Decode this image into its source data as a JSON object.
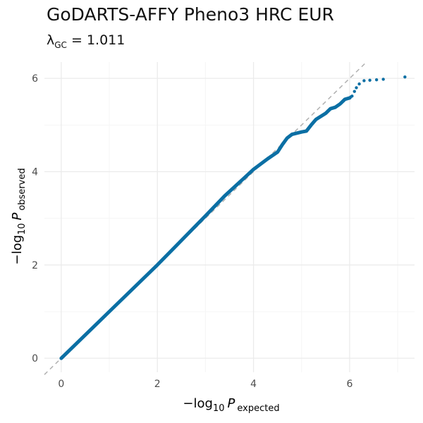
{
  "title": "GoDARTS-AFFY Pheno3 HRC EUR",
  "subtitle": {
    "lambda_symbol": "λ",
    "lambda_sub": "GC",
    "equals": " = ",
    "lambda_value": "1.011"
  },
  "colors": {
    "points": "#0b6fa4",
    "reference_line": "#b0b0b0",
    "grid_major": "#ebebeb",
    "grid_minor": "#f5f5f5"
  },
  "chart_data": {
    "type": "scatter",
    "xlabel": {
      "prefix": "−log",
      "base": "10",
      "p": "P",
      "sub": "expected"
    },
    "ylabel": {
      "prefix": "−log",
      "base": "10",
      "p": "P",
      "sub": "observed"
    },
    "xlim": [
      -0.35,
      7.35
    ],
    "ylim": [
      -0.3,
      6.35
    ],
    "x_ticks": [
      0,
      2,
      4,
      6
    ],
    "y_ticks": [
      0,
      2,
      4,
      6
    ],
    "grid": true,
    "reference_line": "y = x",
    "series": [
      {
        "curve": [
          [
            0.0,
            0.0
          ],
          [
            1.0,
            1.0
          ],
          [
            2.0,
            2.0
          ],
          [
            3.0,
            3.05
          ],
          [
            3.4,
            3.48
          ],
          [
            3.8,
            3.86
          ],
          [
            4.0,
            4.05
          ],
          [
            4.3,
            4.28
          ],
          [
            4.5,
            4.42
          ],
          [
            4.6,
            4.58
          ],
          [
            4.7,
            4.72
          ],
          [
            4.8,
            4.8
          ],
          [
            5.0,
            4.85
          ],
          [
            5.1,
            4.87
          ],
          [
            5.2,
            5.0
          ],
          [
            5.3,
            5.12
          ],
          [
            5.5,
            5.25
          ],
          [
            5.6,
            5.35
          ],
          [
            5.7,
            5.38
          ],
          [
            5.8,
            5.45
          ],
          [
            5.9,
            5.55
          ],
          [
            6.0,
            5.58
          ]
        ],
        "points": [
          [
            6.02,
            5.6
          ],
          [
            6.05,
            5.62
          ],
          [
            6.1,
            5.72
          ],
          [
            6.14,
            5.8
          ],
          [
            6.2,
            5.88
          ],
          [
            6.3,
            5.95
          ],
          [
            6.42,
            5.96
          ],
          [
            6.56,
            5.97
          ],
          [
            6.7,
            5.98
          ],
          [
            7.15,
            6.03
          ]
        ]
      }
    ]
  }
}
